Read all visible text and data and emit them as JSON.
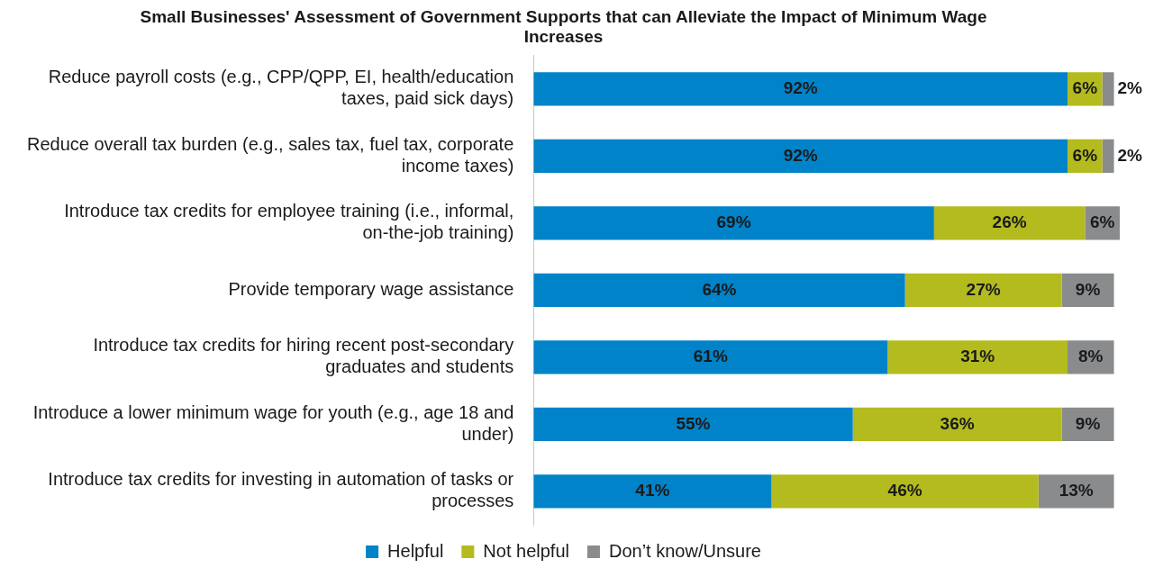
{
  "chart_data": {
    "type": "bar",
    "orientation": "horizontal",
    "stacked": true,
    "title": "Small Businesses' Assessment of Government Supports that can Alleviate the Impact of Minimum Wage Increases",
    "categories": [
      "Reduce payroll costs (e.g., CPP/QPP, EI, health/education taxes, paid sick days)",
      "Reduce overall tax burden (e.g., sales tax, fuel tax, corporate income taxes)",
      "Introduce tax credits for employee training (i.e., informal, on-the-job training)",
      "Provide temporary wage assistance",
      "Introduce tax credits for hiring recent post-secondary graduates and students",
      "Introduce a lower minimum wage for youth (e.g., age 18 and under)",
      "Introduce tax credits for investing in automation of tasks or processes"
    ],
    "series": [
      {
        "name": "Helpful",
        "color": "#0083c9",
        "values": [
          92,
          92,
          69,
          64,
          61,
          55,
          41
        ],
        "value_labels": [
          "92%",
          "92%",
          "69%",
          "64%",
          "61%",
          "55%",
          "41%"
        ]
      },
      {
        "name": "Not helpful",
        "color": "#b3bb1e",
        "values": [
          6,
          6,
          26,
          27,
          31,
          36,
          46
        ],
        "value_labels": [
          "6%",
          "6%",
          "26%",
          "27%",
          "31%",
          "36%",
          "46%"
        ]
      },
      {
        "name": "Don’t know/Unsure",
        "color": "#8a8b8d",
        "values": [
          2,
          2,
          6,
          9,
          8,
          9,
          13
        ],
        "value_labels": [
          "2%",
          "2%",
          "6%",
          "9%",
          "8%",
          "9%",
          "13%"
        ]
      }
    ],
    "legend": "bottom"
  }
}
